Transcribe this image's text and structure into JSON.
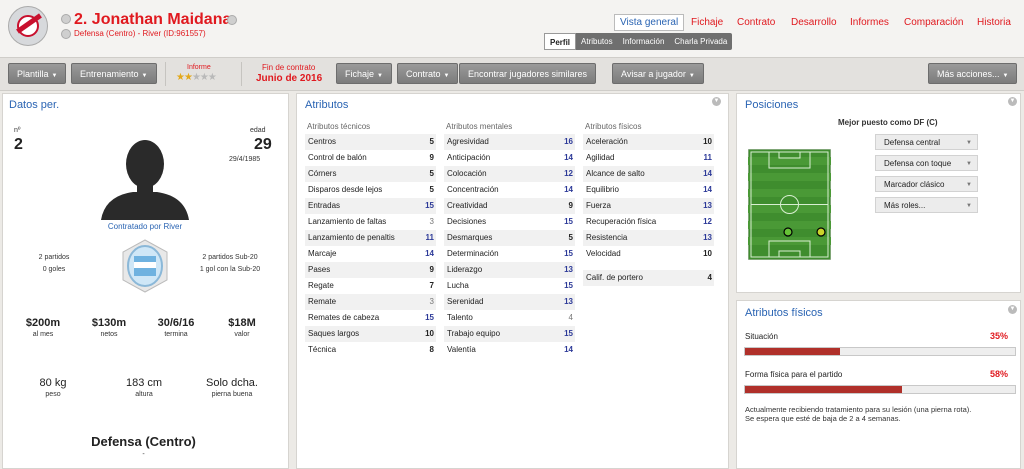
{
  "header": {
    "player_name": "2. Jonathan Maidana",
    "player_sub": "Defensa (Centro) - River (ID:961557)",
    "nav": [
      "Vista general",
      "Fichaje",
      "Contrato",
      "Desarrollo",
      "Informes",
      "Comparación",
      "Historia"
    ],
    "subtabs": [
      "Perfil",
      "Atributos",
      "Información",
      "Charla Privada"
    ]
  },
  "toolbar": {
    "plantilla": "Plantilla",
    "entrenamiento": "Entrenamiento",
    "informe_label": "Informe",
    "stars_filled": 2,
    "stars_total": 5,
    "fin_label": "Fin de contrato",
    "fin_value": "Junio de 2016",
    "fichaje": "Fichaje",
    "contrato": "Contrato",
    "encontrar": "Encontrar jugadores similares",
    "avisar": "Avisar a jugador",
    "mas_acciones": "Más acciones..."
  },
  "datos": {
    "title": "Datos per.",
    "num_label": "nº",
    "num": "2",
    "edad_label": "edad",
    "edad": "29",
    "birth": "29/4/1985",
    "contracted": "Contratado por River",
    "left_stats1": "2 partidos",
    "left_stats2": "0 goles",
    "right_stats1": "2 partidos Sub-20",
    "right_stats2": "1 gol con la Sub-20",
    "wage": "$200m",
    "wage_label": "al mes",
    "value_net": "$130m",
    "value_net_label": "netos",
    "expiry": "30/6/16",
    "expiry_label": "termina",
    "value": "$18M",
    "value_label": "valor",
    "weight": "80 kg",
    "weight_label": "peso",
    "height": "183 cm",
    "height_label": "altura",
    "foot": "Solo dcha.",
    "foot_label": "pierna buena",
    "position": "Defensa (Centro)",
    "position_sub": "-"
  },
  "atributos": {
    "title": "Atributos",
    "tecnicos_head": "Atributos técnicos",
    "mentales_head": "Atributos mentales",
    "fisicos_head": "Atributos físicos",
    "tecnicos": [
      {
        "name": "Centros",
        "value": "5"
      },
      {
        "name": "Control de balón",
        "value": "9"
      },
      {
        "name": "Córners",
        "value": "5"
      },
      {
        "name": "Disparos desde lejos",
        "value": "5"
      },
      {
        "name": "Entradas",
        "value": "15"
      },
      {
        "name": "Lanzamiento de faltas",
        "value": "3"
      },
      {
        "name": "Lanzamiento de penaltis",
        "value": "11"
      },
      {
        "name": "Marcaje",
        "value": "14"
      },
      {
        "name": "Pases",
        "value": "9"
      },
      {
        "name": "Regate",
        "value": "7"
      },
      {
        "name": "Remate",
        "value": "3"
      },
      {
        "name": "Remates de cabeza",
        "value": "15"
      },
      {
        "name": "Saques largos",
        "value": "10"
      },
      {
        "name": "Técnica",
        "value": "8"
      }
    ],
    "mentales": [
      {
        "name": "Agresividad",
        "value": "16"
      },
      {
        "name": "Anticipación",
        "value": "14"
      },
      {
        "name": "Colocación",
        "value": "12"
      },
      {
        "name": "Concentración",
        "value": "14"
      },
      {
        "name": "Creatividad",
        "value": "9"
      },
      {
        "name": "Decisiones",
        "value": "15"
      },
      {
        "name": "Desmarques",
        "value": "5"
      },
      {
        "name": "Determinación",
        "value": "15"
      },
      {
        "name": "Liderazgo",
        "value": "13"
      },
      {
        "name": "Lucha",
        "value": "15"
      },
      {
        "name": "Serenidad",
        "value": "13"
      },
      {
        "name": "Talento",
        "value": "4"
      },
      {
        "name": "Trabajo equipo",
        "value": "15"
      },
      {
        "name": "Valentía",
        "value": "14"
      }
    ],
    "fisicos": [
      {
        "name": "Aceleración",
        "value": "10"
      },
      {
        "name": "Agilidad",
        "value": "11"
      },
      {
        "name": "Alcance de salto",
        "value": "14"
      },
      {
        "name": "Equilibrio",
        "value": "14"
      },
      {
        "name": "Fuerza",
        "value": "13"
      },
      {
        "name": "Recuperación física",
        "value": "12"
      },
      {
        "name": "Resistencia",
        "value": "13"
      },
      {
        "name": "Velocidad",
        "value": "10"
      }
    ],
    "portero": {
      "name": "Calif. de portero",
      "value": "4"
    }
  },
  "posiciones": {
    "title": "Posiciones",
    "best": "Mejor puesto como DF (C)",
    "roles": [
      "Defensa central",
      "Defensa con toque",
      "Marcador clásico",
      "Más roles..."
    ]
  },
  "fisicos_panel": {
    "title": "Atributos físicos",
    "situacion_label": "Situación",
    "situacion_value": "35%",
    "situacion_pct": 35,
    "forma_label": "Forma física para el partido",
    "forma_value": "58%",
    "forma_pct": 58,
    "note": "Actualmente recibiendo tratamiento para su lesión (una pierna rota). Se espera que esté de baja de 2 a 4 semanas."
  },
  "colors": {
    "accent_red": "#e0191f",
    "accent_blue": "#2a64b3",
    "bar_red": "#b0302a"
  }
}
